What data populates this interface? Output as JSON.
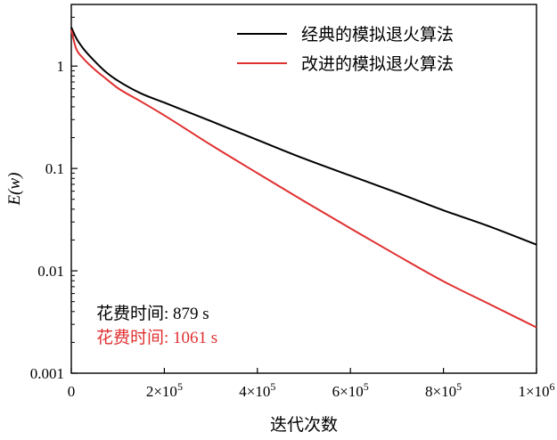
{
  "chart_data": {
    "type": "line",
    "xlabel": "迭代次数",
    "ylabel": "E(w)",
    "xscale": "linear",
    "yscale": "log",
    "xlim": [
      0,
      1000000
    ],
    "ylim": [
      0.001,
      4
    ],
    "x_ticks": [
      {
        "value": 0,
        "label": "0"
      },
      {
        "value": 200000,
        "label": "2×10",
        "exp": "5"
      },
      {
        "value": 400000,
        "label": "4×10",
        "exp": "5"
      },
      {
        "value": 600000,
        "label": "6×10",
        "exp": "5"
      },
      {
        "value": 800000,
        "label": "8×10",
        "exp": "5"
      },
      {
        "value": 1000000,
        "label": "1×10",
        "exp": "6"
      }
    ],
    "y_ticks": [
      {
        "value": 1,
        "label": "1"
      },
      {
        "value": 0.1,
        "label": "0.1"
      },
      {
        "value": 0.01,
        "label": "0.01"
      },
      {
        "value": 0.001,
        "label": "0.001"
      }
    ],
    "grid": false,
    "legend_position": "top-right",
    "series": [
      {
        "name": "经典的模拟退火算法",
        "color": "#000000",
        "x": [
          0,
          10000,
          25000,
          50000,
          75000,
          100000,
          150000,
          200000,
          300000,
          400000,
          500000,
          600000,
          700000,
          800000,
          900000,
          1000000
        ],
        "y": [
          2.4,
          1.9,
          1.5,
          1.12,
          0.87,
          0.72,
          0.54,
          0.44,
          0.29,
          0.19,
          0.125,
          0.085,
          0.058,
          0.039,
          0.027,
          0.018
        ]
      },
      {
        "name": "改进的模拟退火算法",
        "color": "#e03030",
        "x": [
          0,
          10000,
          25000,
          50000,
          75000,
          100000,
          150000,
          200000,
          300000,
          400000,
          500000,
          600000,
          700000,
          800000,
          900000,
          1000000
        ],
        "y": [
          2.25,
          1.5,
          1.2,
          0.93,
          0.75,
          0.61,
          0.45,
          0.33,
          0.17,
          0.09,
          0.048,
          0.026,
          0.0142,
          0.0079,
          0.0047,
          0.0028
        ]
      }
    ],
    "annotations": [
      {
        "label": "花费时间",
        "value": ": 879 s",
        "color": "#000000"
      },
      {
        "label": "花费时间",
        "value": ": 1061 s",
        "color": "#e03030"
      }
    ]
  }
}
